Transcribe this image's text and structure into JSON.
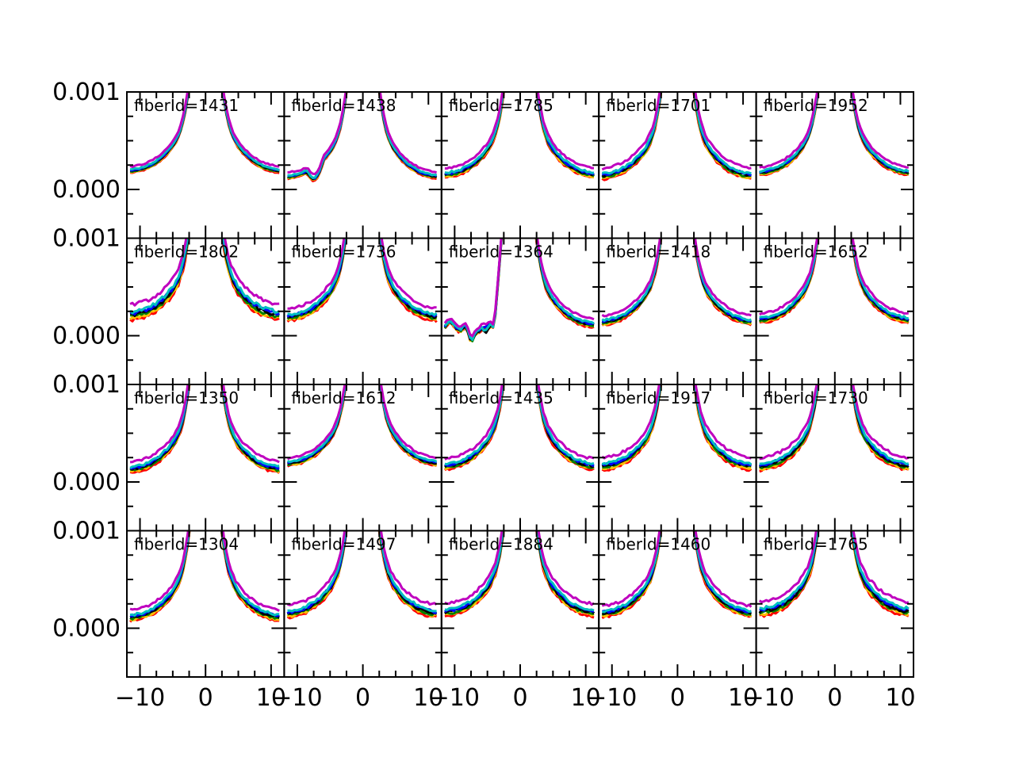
{
  "chart_data": {
    "type": "line",
    "layout": {
      "rows": 4,
      "cols": 5
    },
    "shared_x": true,
    "shared_y": true,
    "xlim": [
      -12,
      12
    ],
    "ylim": [
      -0.0005,
      0.001
    ],
    "x_ticks": [
      -10,
      0,
      10
    ],
    "x_tick_labels": [
      "−10",
      "0",
      "10"
    ],
    "y_ticks": [
      0.0,
      0.001
    ],
    "y_tick_labels": [
      "0.000",
      "0.001"
    ],
    "grid": false,
    "title": "",
    "xlabel": "",
    "ylabel": "",
    "series_colors": [
      "#ff0000",
      "#ffbf00",
      "#008000",
      "#000000",
      "#0000ff",
      "#00bfbf",
      "#bf00bf"
    ],
    "panels": [
      {
        "label": "fiberId=1431",
        "base": 0.00018,
        "spread": 4e-05
      },
      {
        "label": "fiberId=1438",
        "base": 0.00012,
        "spread": 4e-05,
        "dip": true
      },
      {
        "label": "fiberId=1785",
        "base": 0.00014,
        "spread": 6e-05
      },
      {
        "label": "fiberId=1701",
        "base": 0.00013,
        "spread": 7e-05
      },
      {
        "label": "fiberId=1952",
        "base": 0.00016,
        "spread": 5e-05
      },
      {
        "label": "fiberId=1802",
        "base": 0.0002,
        "spread": 0.0001
      },
      {
        "label": "fiberId=1736",
        "base": 0.00018,
        "spread": 8e-05
      },
      {
        "label": "fiberId=1364",
        "base": 0.0001,
        "spread": 6e-05,
        "anomaly": true
      },
      {
        "label": "fiberId=1418",
        "base": 0.00013,
        "spread": 6e-05
      },
      {
        "label": "fiberId=1652",
        "base": 0.00015,
        "spread": 6e-05
      },
      {
        "label": "fiberId=1350",
        "base": 0.00012,
        "spread": 7e-05
      },
      {
        "label": "fiberId=1612",
        "base": 0.00018,
        "spread": 5e-05
      },
      {
        "label": "fiberId=1435",
        "base": 0.00015,
        "spread": 7e-05
      },
      {
        "label": "fiberId=1917",
        "base": 0.00015,
        "spread": 8e-05
      },
      {
        "label": "fiberId=1730",
        "base": 0.00015,
        "spread": 8e-05
      },
      {
        "label": "fiberId=1304",
        "base": 0.0001,
        "spread": 7e-05
      },
      {
        "label": "fiberId=1497",
        "base": 0.00014,
        "spread": 8e-05
      },
      {
        "label": "fiberId=1884",
        "base": 0.00015,
        "spread": 8e-05
      },
      {
        "label": "fiberId=1460",
        "base": 0.00014,
        "spread": 7e-05
      },
      {
        "label": "fiberId=1765",
        "base": 0.00016,
        "spread": 9e-05
      }
    ]
  }
}
